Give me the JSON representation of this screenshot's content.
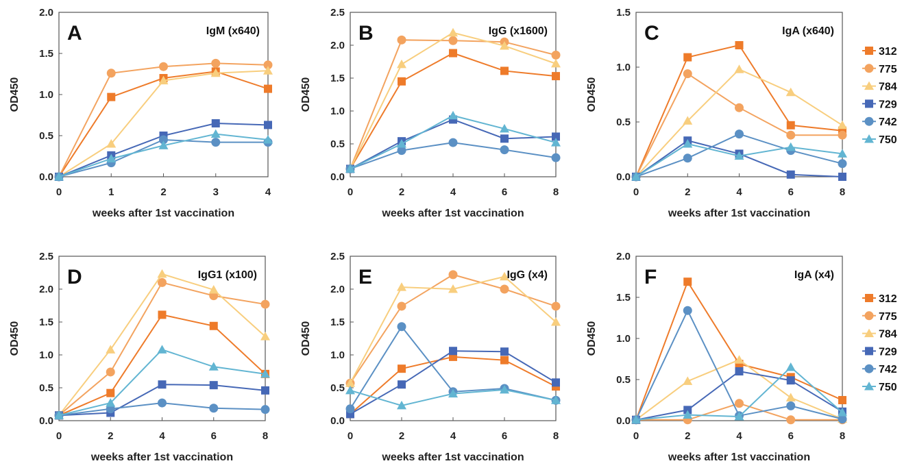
{
  "series_styles": [
    {
      "name": "312",
      "color": "#EE7B2A",
      "marker": "square"
    },
    {
      "name": "775",
      "color": "#F3A35F",
      "marker": "circle"
    },
    {
      "name": "784",
      "color": "#F8CE7E",
      "marker": "triangle"
    },
    {
      "name": "729",
      "color": "#4668B6",
      "marker": "square"
    },
    {
      "name": "742",
      "color": "#5B90C4",
      "marker": "circle"
    },
    {
      "name": "750",
      "color": "#62B5D2",
      "marker": "triangle"
    }
  ],
  "chart_data": [
    {
      "type": "line",
      "label": "A",
      "title": "IgM (x640)",
      "xlabel": "weeks after 1st vaccination",
      "ylabel": "OD450",
      "x": [
        0,
        1,
        2,
        3,
        4
      ],
      "xticks": [
        0,
        1,
        2,
        3,
        4
      ],
      "ylim": [
        0,
        2.0
      ],
      "yticks": [
        "0.0",
        "0.5",
        "1.0",
        "1.5",
        "2.0"
      ],
      "series": [
        {
          "name": "312",
          "values": [
            0.0,
            0.97,
            1.2,
            1.28,
            1.07
          ]
        },
        {
          "name": "775",
          "values": [
            0.0,
            1.26,
            1.34,
            1.38,
            1.36
          ]
        },
        {
          "name": "784",
          "values": [
            0.0,
            0.4,
            1.17,
            1.26,
            1.29
          ]
        },
        {
          "name": "729",
          "values": [
            0.0,
            0.26,
            0.5,
            0.65,
            0.63
          ]
        },
        {
          "name": "742",
          "values": [
            0.0,
            0.17,
            0.45,
            0.42,
            0.42
          ]
        },
        {
          "name": "750",
          "values": [
            0.0,
            0.22,
            0.38,
            0.52,
            0.45
          ]
        }
      ]
    },
    {
      "type": "line",
      "label": "B",
      "title": "IgG (x1600)",
      "xlabel": "weeks after 1st vaccination",
      "ylabel": "OD450",
      "x": [
        0,
        2,
        4,
        6,
        8
      ],
      "xticks": [
        0,
        2,
        4,
        6,
        8
      ],
      "ylim": [
        0,
        2.5
      ],
      "yticks": [
        "0.0",
        "0.5",
        "1.0",
        "1.5",
        "2.0",
        "2.5"
      ],
      "series": [
        {
          "name": "312",
          "values": [
            0.12,
            1.45,
            1.88,
            1.61,
            1.53
          ]
        },
        {
          "name": "775",
          "values": [
            0.12,
            2.08,
            2.07,
            2.05,
            1.85
          ]
        },
        {
          "name": "784",
          "values": [
            0.12,
            1.71,
            2.19,
            1.99,
            1.72
          ]
        },
        {
          "name": "729",
          "values": [
            0.12,
            0.54,
            0.87,
            0.58,
            0.61
          ]
        },
        {
          "name": "742",
          "values": [
            0.12,
            0.4,
            0.52,
            0.41,
            0.29
          ]
        },
        {
          "name": "750",
          "values": [
            0.12,
            0.5,
            0.93,
            0.73,
            0.52
          ]
        }
      ]
    },
    {
      "type": "line",
      "label": "C",
      "title": "IgA (x640)",
      "xlabel": "weeks after 1st vaccination",
      "ylabel": "OD450",
      "x": [
        0,
        2,
        4,
        6,
        8
      ],
      "xticks": [
        0,
        2,
        4,
        6,
        8
      ],
      "ylim": [
        0,
        1.5
      ],
      "yticks": [
        "0.0",
        "0.5",
        "1.0",
        "1.5"
      ],
      "series": [
        {
          "name": "312",
          "values": [
            0.0,
            1.09,
            1.2,
            0.47,
            0.42
          ]
        },
        {
          "name": "775",
          "values": [
            0.0,
            0.94,
            0.63,
            0.38,
            0.38
          ]
        },
        {
          "name": "784",
          "values": [
            0.0,
            0.51,
            0.98,
            0.77,
            0.47
          ]
        },
        {
          "name": "729",
          "values": [
            0.0,
            0.33,
            0.21,
            0.02,
            0.0
          ]
        },
        {
          "name": "742",
          "values": [
            0.0,
            0.17,
            0.39,
            0.24,
            0.12
          ]
        },
        {
          "name": "750",
          "values": [
            0.0,
            0.3,
            0.19,
            0.27,
            0.21
          ]
        }
      ]
    },
    {
      "type": "line",
      "label": "D",
      "title": "IgG1 (x100)",
      "xlabel": "weeks after 1st vaccination",
      "ylabel": "OD450",
      "x": [
        0,
        2,
        4,
        6,
        8
      ],
      "xticks": [
        0,
        2,
        4,
        6,
        8
      ],
      "ylim": [
        0,
        2.5
      ],
      "yticks": [
        "0.0",
        "0.5",
        "1.0",
        "1.5",
        "2.0",
        "2.5"
      ],
      "series": [
        {
          "name": "312",
          "values": [
            0.08,
            0.42,
            1.61,
            1.44,
            0.71
          ]
        },
        {
          "name": "775",
          "values": [
            0.08,
            0.74,
            2.1,
            1.9,
            1.77
          ]
        },
        {
          "name": "784",
          "values": [
            0.08,
            1.08,
            2.23,
            1.99,
            1.28
          ]
        },
        {
          "name": "729",
          "values": [
            0.08,
            0.12,
            0.55,
            0.54,
            0.46
          ]
        },
        {
          "name": "742",
          "values": [
            0.08,
            0.18,
            0.27,
            0.19,
            0.17
          ]
        },
        {
          "name": "750",
          "values": [
            0.08,
            0.27,
            1.08,
            0.82,
            0.71
          ]
        }
      ]
    },
    {
      "type": "line",
      "label": "E",
      "title": "IgG (x4)",
      "xlabel": "weeks after 1st vaccination",
      "ylabel": "OD450",
      "x": [
        0,
        2,
        4,
        6,
        8
      ],
      "xticks": [
        0,
        2,
        4,
        6,
        8
      ],
      "ylim": [
        0,
        2.5
      ],
      "yticks": [
        "0.0",
        "0.5",
        "1.0",
        "1.5",
        "2.0",
        "2.5"
      ],
      "series": [
        {
          "name": "312",
          "values": [
            0.1,
            0.79,
            0.97,
            0.92,
            0.52
          ]
        },
        {
          "name": "775",
          "values": [
            0.57,
            1.74,
            2.22,
            2.0,
            1.74
          ]
        },
        {
          "name": "784",
          "values": [
            0.57,
            2.03,
            2.0,
            2.19,
            1.5
          ]
        },
        {
          "name": "729",
          "values": [
            0.1,
            0.55,
            1.06,
            1.05,
            0.58
          ]
        },
        {
          "name": "742",
          "values": [
            0.18,
            1.43,
            0.44,
            0.49,
            0.31
          ]
        },
        {
          "name": "750",
          "values": [
            0.46,
            0.23,
            0.41,
            0.47,
            0.31
          ]
        }
      ]
    },
    {
      "type": "line",
      "label": "F",
      "title": "IgA (x4)",
      "xlabel": "weeks after 1st vaccination",
      "ylabel": "OD450",
      "x": [
        0,
        2,
        4,
        6,
        8
      ],
      "xticks": [
        0,
        2,
        4,
        6,
        8
      ],
      "ylim": [
        0,
        2.0
      ],
      "yticks": [
        "0.0",
        "0.5",
        "1.0",
        "1.5",
        "2.0"
      ],
      "series": [
        {
          "name": "312",
          "values": [
            0.01,
            1.69,
            0.69,
            0.53,
            0.25
          ]
        },
        {
          "name": "775",
          "values": [
            0.01,
            0.01,
            0.21,
            0.01,
            0.01
          ]
        },
        {
          "name": "784",
          "values": [
            0.01,
            0.48,
            0.74,
            0.28,
            0.02
          ]
        },
        {
          "name": "729",
          "values": [
            0.01,
            0.13,
            0.6,
            0.49,
            0.11
          ]
        },
        {
          "name": "742",
          "values": [
            0.01,
            1.34,
            0.06,
            0.18,
            0.02
          ]
        },
        {
          "name": "750",
          "values": [
            0.01,
            0.07,
            0.05,
            0.65,
            0.1
          ]
        }
      ]
    }
  ]
}
